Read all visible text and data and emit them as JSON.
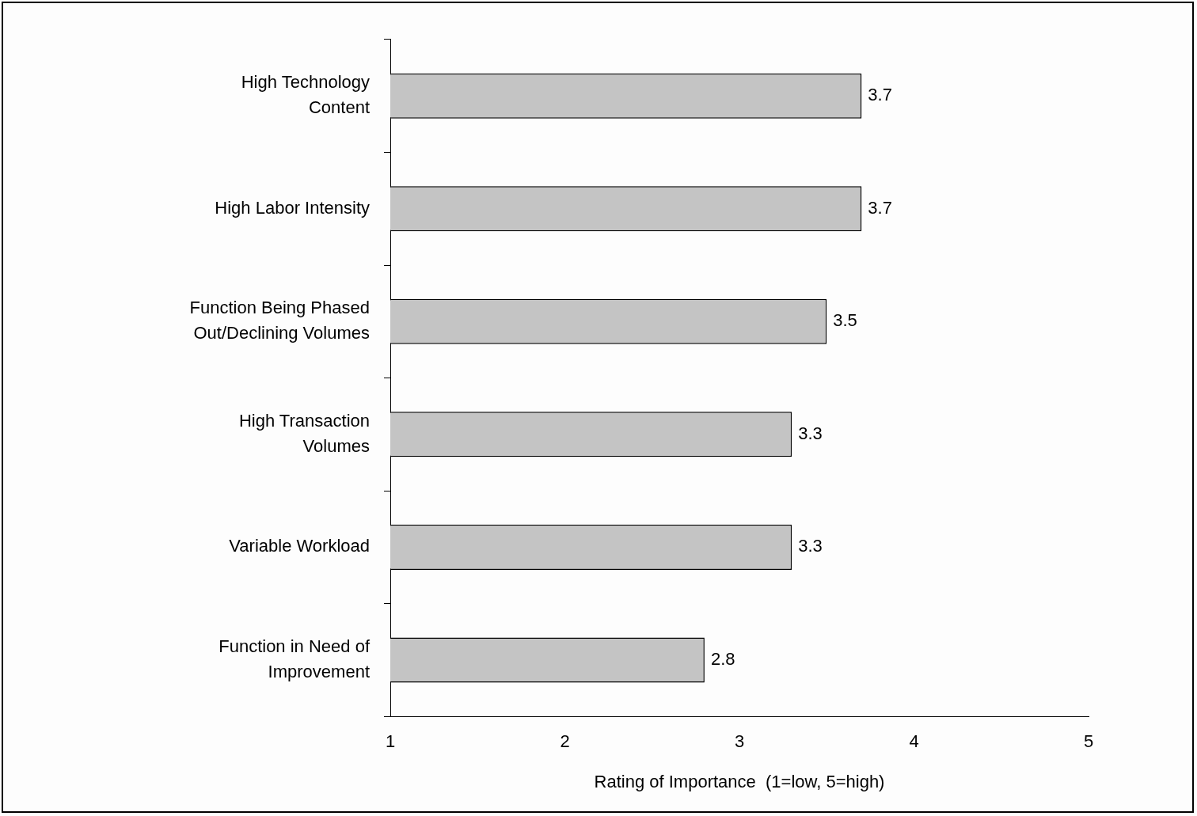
{
  "chart_data": {
    "type": "bar",
    "orientation": "horizontal",
    "categories": [
      "High Technology Content",
      "High Labor Intensity",
      "Function Being Phased Out/Declining Volumes",
      "High Transaction Volumes",
      "Variable Workload",
      "Function in Need of Improvement"
    ],
    "values": [
      3.7,
      3.7,
      3.5,
      3.3,
      3.3,
      2.8
    ],
    "color": "#c4c4c4",
    "xlim": [
      1,
      5
    ],
    "xticks": [
      1,
      2,
      3,
      4,
      5
    ],
    "xlabel": "Rating of Importance  (1=low, 5=high)",
    "data_labels": true
  }
}
